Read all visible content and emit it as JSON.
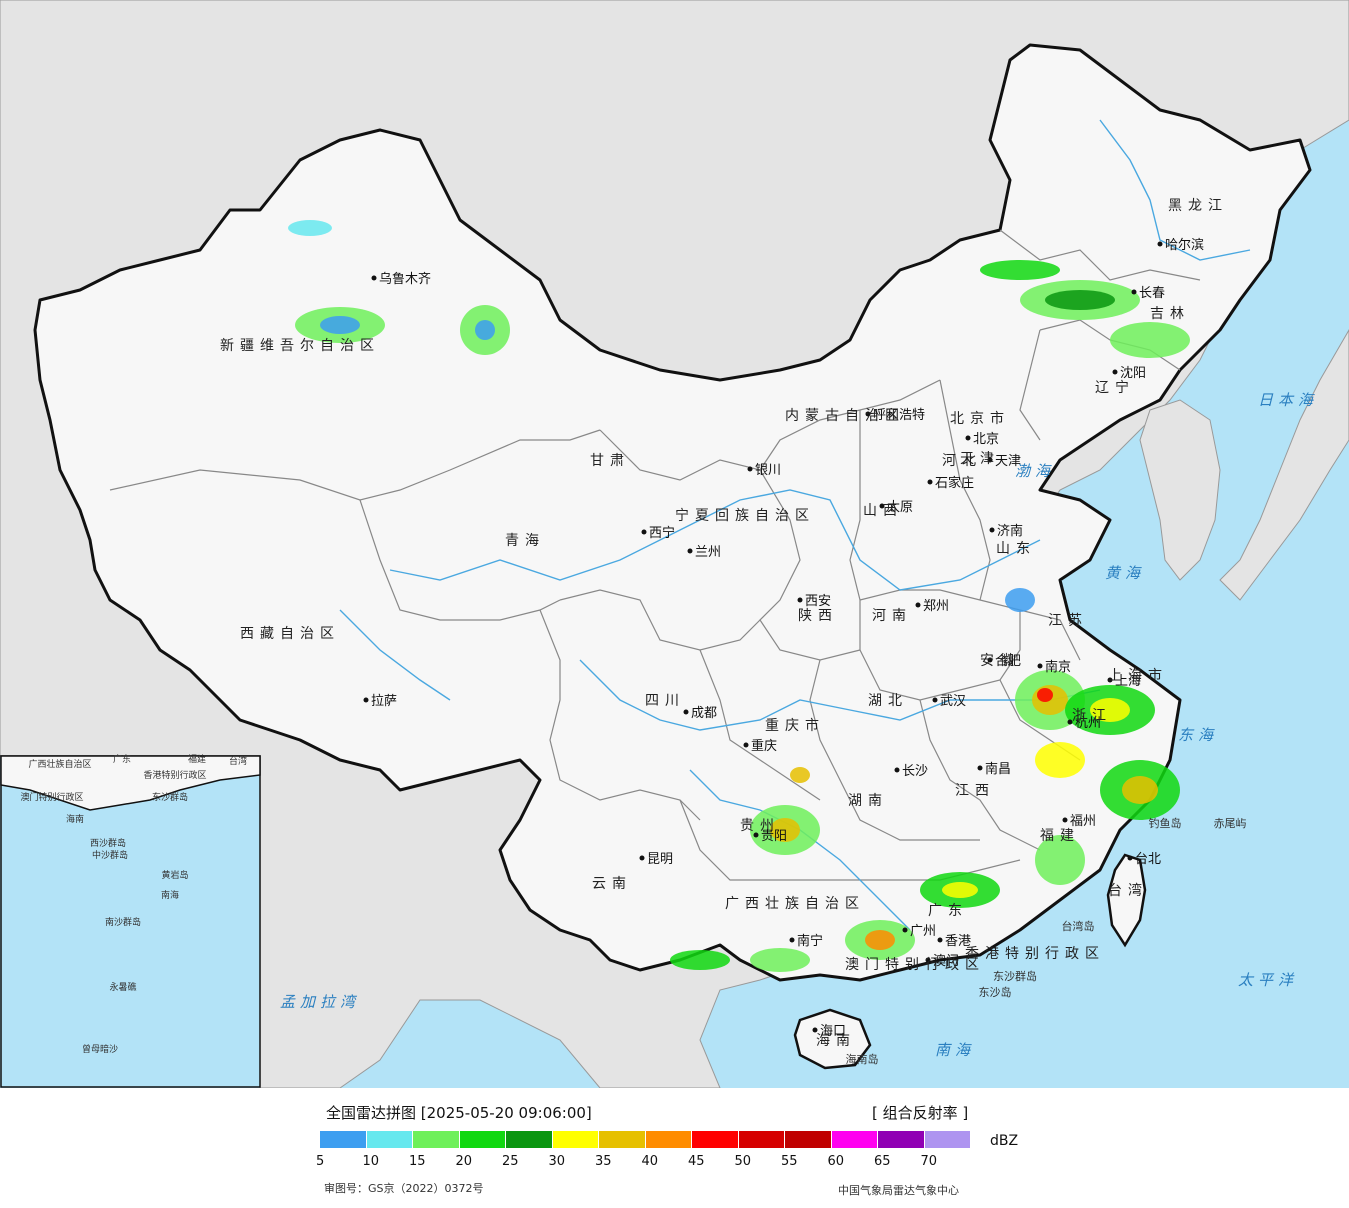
{
  "map": {
    "province_labels": [
      {
        "text": "黑龙江"
      },
      {
        "text": "吉林"
      },
      {
        "text": "辽宁"
      },
      {
        "text": "内蒙古自治区"
      },
      {
        "text": "新疆维吾尔自治区"
      },
      {
        "text": "西藏自治区"
      },
      {
        "text": "青海"
      },
      {
        "text": "甘肃"
      },
      {
        "text": "宁夏回族自治区"
      },
      {
        "text": "陕西"
      },
      {
        "text": "山西"
      },
      {
        "text": "河北"
      },
      {
        "text": "山东"
      },
      {
        "text": "河南"
      },
      {
        "text": "江苏"
      },
      {
        "text": "安徽"
      },
      {
        "text": "上海市"
      },
      {
        "text": "浙江"
      },
      {
        "text": "湖北"
      },
      {
        "text": "湖南"
      },
      {
        "text": "江西"
      },
      {
        "text": "福建"
      },
      {
        "text": "广东"
      },
      {
        "text": "广西壮族自治区"
      },
      {
        "text": "云南"
      },
      {
        "text": "贵州"
      },
      {
        "text": "四川"
      },
      {
        "text": "重庆市"
      },
      {
        "text": "海南"
      },
      {
        "text": "台湾"
      },
      {
        "text": "北京市"
      },
      {
        "text": "天津"
      },
      {
        "text": "香港特别行政区"
      },
      {
        "text": "澳门特别行政区"
      }
    ],
    "city_labels": [
      {
        "text": "乌鲁木齐"
      },
      {
        "text": "哈尔滨"
      },
      {
        "text": "长春"
      },
      {
        "text": "沈阳"
      },
      {
        "text": "呼和浩特"
      },
      {
        "text": "北京"
      },
      {
        "text": "天津"
      },
      {
        "text": "石家庄"
      },
      {
        "text": "太原"
      },
      {
        "text": "济南"
      },
      {
        "text": "银川"
      },
      {
        "text": "西宁"
      },
      {
        "text": "兰州"
      },
      {
        "text": "西安"
      },
      {
        "text": "郑州"
      },
      {
        "text": "合肥"
      },
      {
        "text": "南京"
      },
      {
        "text": "上海"
      },
      {
        "text": "杭州"
      },
      {
        "text": "武汉"
      },
      {
        "text": "长沙"
      },
      {
        "text": "南昌"
      },
      {
        "text": "福州"
      },
      {
        "text": "台北"
      },
      {
        "text": "成都"
      },
      {
        "text": "重庆"
      },
      {
        "text": "贵阳"
      },
      {
        "text": "昆明"
      },
      {
        "text": "南宁"
      },
      {
        "text": "广州"
      },
      {
        "text": "香港"
      },
      {
        "text": "澳门"
      },
      {
        "text": "海口"
      },
      {
        "text": "拉萨"
      }
    ],
    "sea_labels": [
      {
        "text": "日本海"
      },
      {
        "text": "渤海"
      },
      {
        "text": "黄海"
      },
      {
        "text": "东海"
      },
      {
        "text": "太平洋"
      },
      {
        "text": "南海"
      },
      {
        "text": "孟加拉湾"
      }
    ],
    "island_labels": [
      {
        "text": "钓鱼岛"
      },
      {
        "text": "赤尾屿"
      },
      {
        "text": "台湾岛"
      },
      {
        "text": "东沙群岛"
      },
      {
        "text": "东沙岛"
      },
      {
        "text": "海南岛"
      }
    ],
    "inset_labels": [
      {
        "text": "广西壮族自治区"
      },
      {
        "text": "广东"
      },
      {
        "text": "福建"
      },
      {
        "text": "台湾"
      },
      {
        "text": "澳门特别行政区"
      },
      {
        "text": "香港特别行政区"
      },
      {
        "text": "东沙群岛"
      },
      {
        "text": "海南"
      },
      {
        "text": "西沙群岛"
      },
      {
        "text": "中沙群岛"
      },
      {
        "text": "黄岩岛"
      },
      {
        "text": "南海"
      },
      {
        "text": "南沙群岛"
      },
      {
        "text": "永暑礁"
      },
      {
        "text": "曾母暗沙"
      }
    ],
    "colors": {
      "sea": "#b3e3f7",
      "outside_land": "#e4e4e4",
      "china_land": "#f7f7f7",
      "border": "#111111",
      "province_border": "#888888",
      "river": "#4aa8e0",
      "sea_text": "#2a7fc0",
      "island_text": "#c0398c"
    }
  },
  "legend": {
    "title": "全国雷达拼图 [2025-05-20 09:06:00]",
    "product": "[ 组合反射率 ]",
    "unit": "dBZ",
    "ticks": [
      "5",
      "10",
      "15",
      "20",
      "25",
      "30",
      "35",
      "40",
      "45",
      "50",
      "55",
      "60",
      "65",
      "70"
    ],
    "colors": [
      "#3d9ef0",
      "#66e8ee",
      "#6ef05a",
      "#10d810",
      "#0a9610",
      "#ffff00",
      "#e6c000",
      "#ff8c00",
      "#ff0000",
      "#d60000",
      "#c00000",
      "#ff00f0",
      "#9000b4",
      "#ae94f0"
    ],
    "approval": "审图号：GS京（2022）0372号",
    "source": "中国气象局雷达气象中心"
  }
}
